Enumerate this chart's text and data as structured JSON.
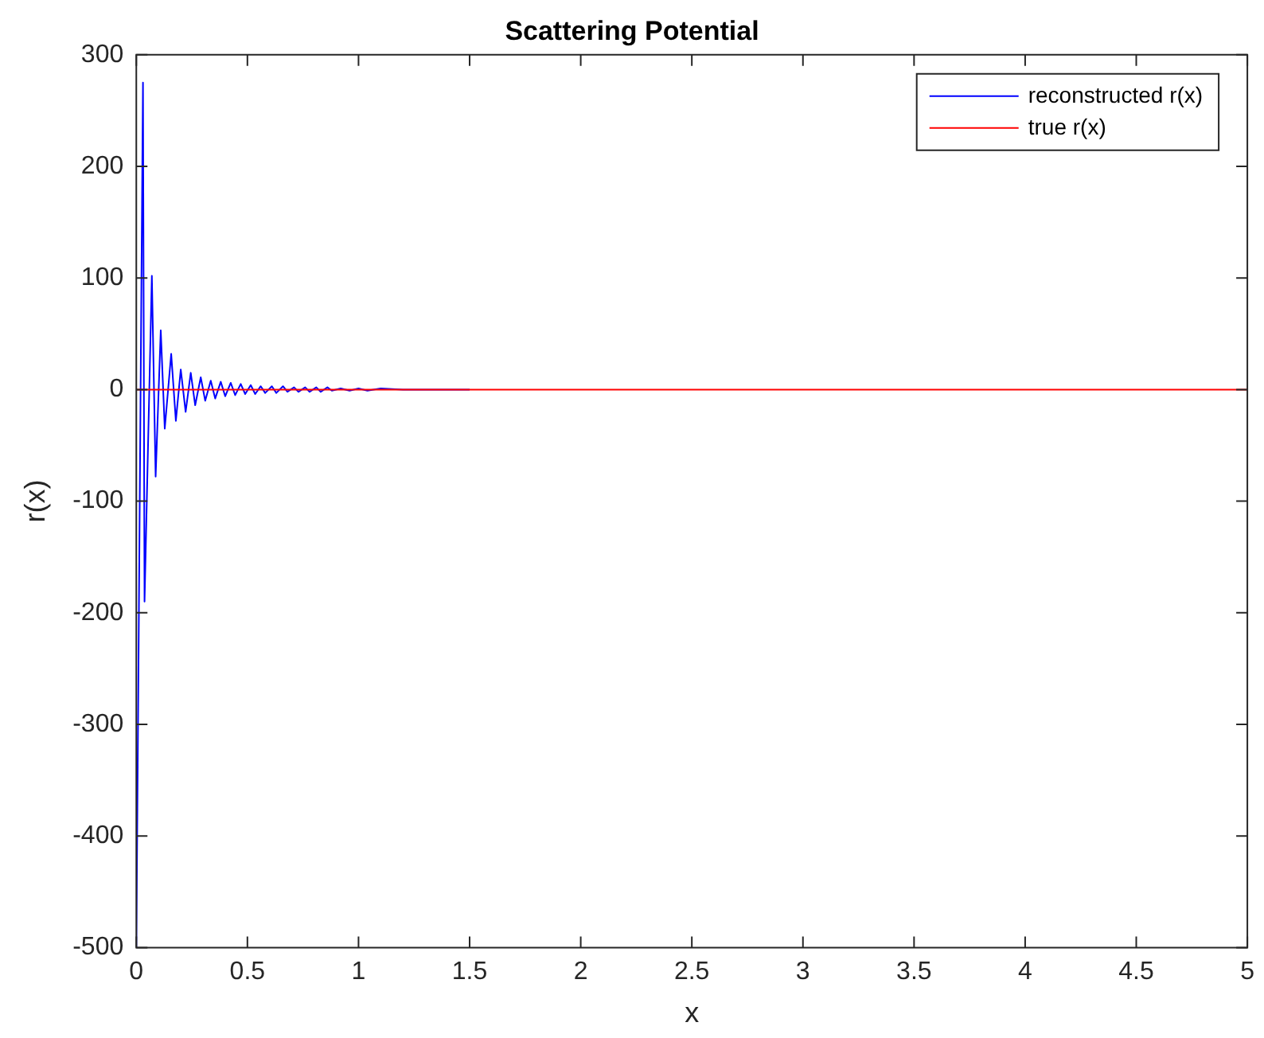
{
  "chart_data": {
    "type": "line",
    "title": "Scattering Potential",
    "xlabel": "x",
    "ylabel": "r(x)",
    "xlim": [
      0,
      5
    ],
    "xticks": [
      0,
      0.5,
      1,
      1.5,
      2,
      2.5,
      3,
      3.5,
      4,
      4.5,
      5
    ],
    "ylim": [
      -500,
      300
    ],
    "yticks": [
      -500,
      -400,
      -300,
      -200,
      -100,
      0,
      100,
      200,
      300
    ],
    "grid": false,
    "legend": "top right",
    "series": [
      {
        "name": "reconstructed r(x)",
        "color": "#0000ff",
        "x": [
          0,
          0.03,
          0.037,
          0.07,
          0.087,
          0.11,
          0.128,
          0.157,
          0.178,
          0.2,
          0.222,
          0.245,
          0.265,
          0.29,
          0.31,
          0.335,
          0.355,
          0.38,
          0.4,
          0.425,
          0.445,
          0.47,
          0.49,
          0.515,
          0.535,
          0.56,
          0.58,
          0.61,
          0.63,
          0.66,
          0.68,
          0.71,
          0.73,
          0.76,
          0.78,
          0.81,
          0.83,
          0.86,
          0.88,
          0.92,
          0.96,
          1.0,
          1.04,
          1.1,
          1.2,
          1.5
        ],
        "values": [
          -500,
          275,
          -190,
          102,
          -78,
          53,
          -35,
          32,
          -28,
          18,
          -20,
          15,
          -14,
          11,
          -10,
          8,
          -8,
          7,
          -6,
          6,
          -5,
          5,
          -4,
          4,
          -4,
          3,
          -3,
          3,
          -3,
          3,
          -2,
          2,
          -2,
          2,
          -2,
          2,
          -2,
          2,
          -1,
          1,
          -1,
          1,
          -1,
          1,
          0,
          0
        ]
      },
      {
        "name": "true r(x)",
        "color": "#ff0000",
        "x": [
          0,
          5
        ],
        "values": [
          0,
          0
        ]
      }
    ]
  }
}
